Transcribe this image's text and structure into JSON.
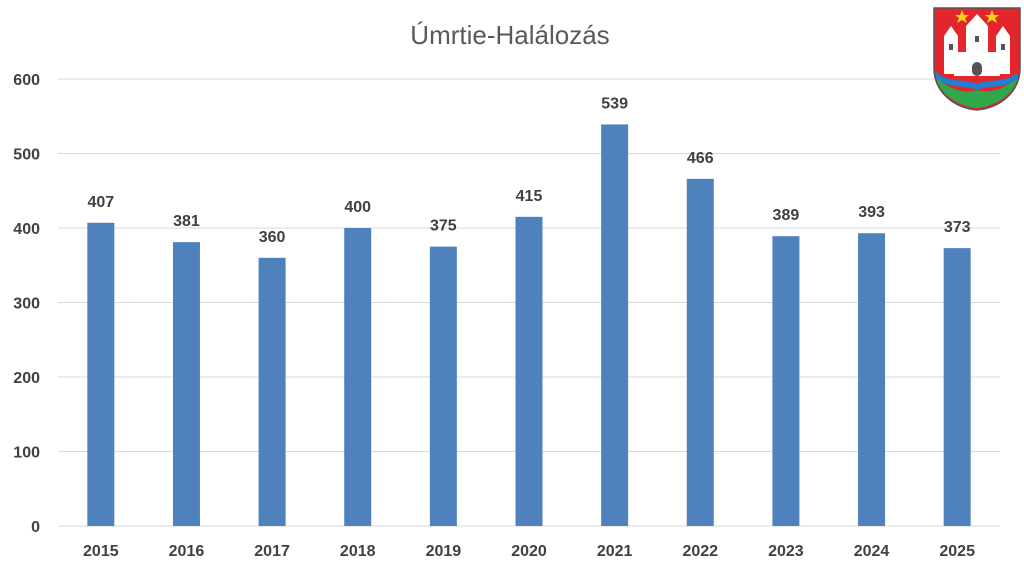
{
  "chart_data": {
    "type": "bar",
    "title": "Úmrtie-Halálozás",
    "categories": [
      "2015",
      "2016",
      "2017",
      "2018",
      "2019",
      "2020",
      "2021",
      "2022",
      "2023",
      "2024",
      "2025"
    ],
    "values": [
      407,
      381,
      360,
      400,
      375,
      415,
      539,
      466,
      389,
      393,
      373
    ],
    "ylim": [
      0,
      600
    ],
    "yticks": [
      0,
      100,
      200,
      300,
      400,
      500,
      600
    ],
    "grid": true,
    "data_labels": true,
    "bar_color": "#4f81bd"
  },
  "emblem": {
    "shield_red": "#e2262b",
    "shield_green": "#2ea84a",
    "wave_blue": "#1f7fd0",
    "star_color": "#f5d313",
    "castle_color": "#ffffff"
  }
}
